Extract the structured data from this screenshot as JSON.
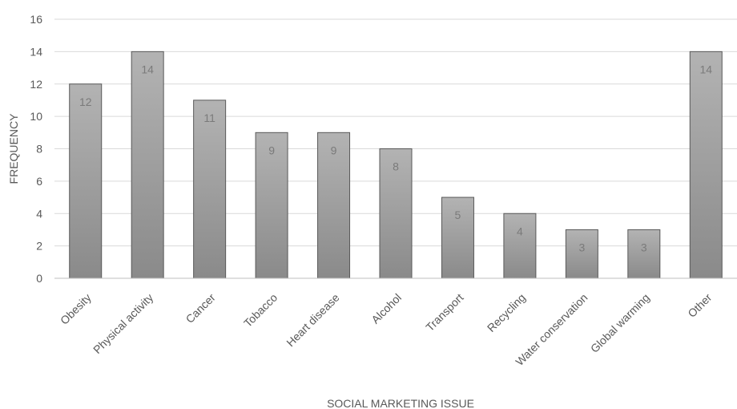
{
  "chart_data": {
    "type": "bar",
    "categories": [
      "Obesity",
      "Physical activity",
      "Cancer",
      "Tobacco",
      "Heart disease",
      "Alcohol",
      "Transport",
      "Recycling",
      "Water conservation",
      "Global warming",
      "Other"
    ],
    "values": [
      12,
      14,
      11,
      9,
      9,
      8,
      5,
      4,
      3,
      3,
      14
    ],
    "title": "",
    "xlabel": "SOCIAL MARKETING ISSUE",
    "ylabel": "FREQUENCY",
    "ylim": [
      0,
      16
    ],
    "yticks": [
      "0",
      "2",
      "4",
      "6",
      "8",
      "10",
      "12",
      "14",
      "16"
    ],
    "grid": true,
    "legend": "none",
    "data_labels": true,
    "colors": {
      "bar_top": "#b3b3b3",
      "bar_bottom": "#8a8a8a",
      "bar_edge": "#595959",
      "gridline": "#d9d9d9",
      "axis_line": "#bfbfbf",
      "text": "#595959",
      "data_label": "#7a7a7a"
    }
  }
}
